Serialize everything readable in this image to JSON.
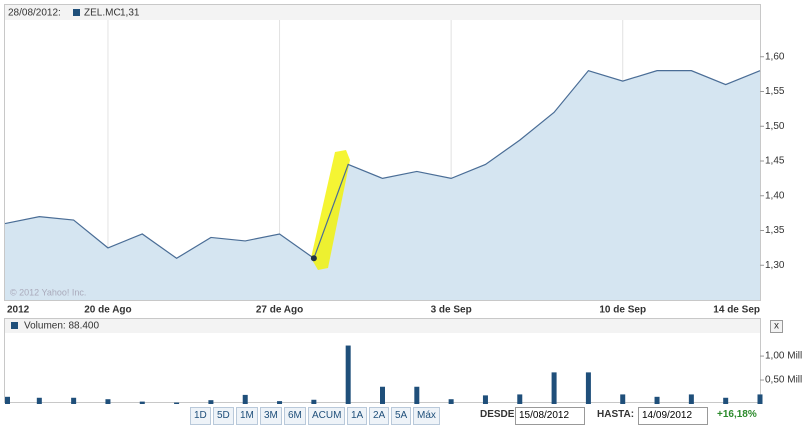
{
  "chart_data": [
    {
      "type": "area",
      "legend_date": "28/08/2012:",
      "legend_value_label": "1,31",
      "copyright": "© 2012 Yahoo! Inc.",
      "categories": [
        "2012",
        null,
        null,
        "20 de Ago",
        null,
        null,
        null,
        null,
        "27 de Ago",
        null,
        null,
        null,
        null,
        "3 de Sep",
        null,
        null,
        null,
        null,
        "10 de Sep",
        null,
        null,
        null,
        "14 de Sep"
      ],
      "series": [
        {
          "name": "ZEL.MC",
          "color": "#4a6d96",
          "fill": "#d5e5f1",
          "values": [
            1.36,
            1.37,
            1.365,
            1.325,
            1.345,
            1.31,
            1.34,
            1.335,
            1.345,
            1.31,
            1.445,
            1.425,
            1.435,
            1.425,
            1.445,
            1.48,
            1.52,
            1.58,
            1.565,
            1.58,
            1.58,
            1.56,
            1.58
          ]
        }
      ],
      "marker_index": 9,
      "ylim": [
        1.25,
        1.65
      ],
      "yticks": [
        {
          "value": 1.3,
          "label": "1,30"
        },
        {
          "value": 1.35,
          "label": "1,35"
        },
        {
          "value": 1.4,
          "label": "1,40"
        },
        {
          "value": 1.45,
          "label": "1,45"
        },
        {
          "value": 1.5,
          "label": "1,50"
        },
        {
          "value": 1.55,
          "label": "1,55"
        },
        {
          "value": 1.6,
          "label": "1,60"
        }
      ],
      "grid": true
    },
    {
      "type": "bar",
      "legend": "Volumen: 88.400",
      "color": "#1f4f7a",
      "values": [
        0.15,
        0.13,
        0.13,
        0.1,
        0.05,
        0.03,
        0.08,
        0.19,
        0.06,
        0.0884,
        1.22,
        0.36,
        0.36,
        0.1,
        0.18,
        0.2,
        0.66,
        0.66,
        0.2,
        0.15,
        0.2,
        0.13,
        0.2
      ],
      "ylim": [
        0,
        1.44
      ],
      "yticks": [
        {
          "value": 0.5,
          "label": "0,50 Mill"
        },
        {
          "value": 1,
          "label": "1,00 Mill"
        }
      ]
    }
  ],
  "controls": {
    "ranges": [
      "1D",
      "5D",
      "1M",
      "3M",
      "6M",
      "ACUM",
      "1A",
      "2A",
      "5A",
      "Máx"
    ],
    "from_label": "DESDE:",
    "from_value": "15/08/2012",
    "to_label": "HASTA:",
    "to_value": "14/09/2012",
    "change": "+16,18%",
    "close": "x"
  }
}
